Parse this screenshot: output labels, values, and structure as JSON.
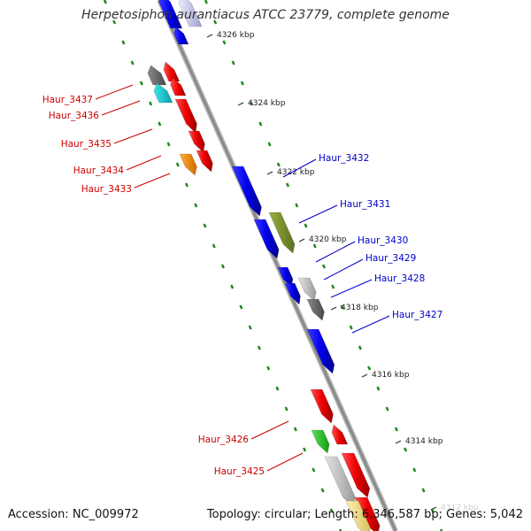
{
  "title": "Herpetosiphon aurantiacus ATCC 23779, complete genome",
  "accession": "Accession: NC_009972",
  "topology": "Topology: circular; Length: 6,346,587 bp; Genes: 5,042",
  "colors": {
    "backbone": "#8a8a8a",
    "gc_dots": "#1e8a1e",
    "label_left": "#cc0000",
    "label_right": "#0000cc",
    "kbp_text": "#222222"
  },
  "kbp_ticks": [
    {
      "label": "4326 kbp"
    },
    {
      "label": "4324 kbp"
    },
    {
      "label": "4322 kbp"
    },
    {
      "label": "4320 kbp"
    },
    {
      "label": "4318 kbp"
    },
    {
      "label": "4316 kbp"
    },
    {
      "label": "4314 kbp"
    },
    {
      "label": "4312 kbp"
    }
  ],
  "genes": [
    {
      "id": "g-top-blue-1",
      "color": "blue",
      "strand": "reverse"
    },
    {
      "id": "g-top-lav",
      "color": "lavender",
      "strand": "reverse"
    },
    {
      "id": "g-top-blue-2",
      "color": "blue",
      "strand": "reverse"
    },
    {
      "id": "g-grey-1",
      "color": "dimgray",
      "strand": "reverse"
    },
    {
      "id": "g-cyan",
      "color": "cyan",
      "strand": "reverse"
    },
    {
      "id": "g-red-1",
      "color": "red",
      "strand": "reverse"
    },
    {
      "id": "g-red-2",
      "color": "red",
      "strand": "reverse"
    },
    {
      "id": "g-red-3",
      "color": "red",
      "strand": "forward"
    },
    {
      "id": "g-red-4",
      "color": "red",
      "strand": "forward"
    },
    {
      "id": "g-red-5",
      "color": "red",
      "strand": "forward"
    },
    {
      "id": "g-orange",
      "color": "orange",
      "strand": "forward"
    },
    {
      "id": "g-blue-3432",
      "color": "blue",
      "strand": "forward"
    },
    {
      "id": "g-olive-3431",
      "color": "olive",
      "strand": "forward"
    },
    {
      "id": "g-blue-3430",
      "color": "blue",
      "strand": "forward"
    },
    {
      "id": "g-blue-3429a",
      "color": "blue",
      "strand": "forward"
    },
    {
      "id": "g-lgrey-3429",
      "color": "lightgray",
      "strand": "forward"
    },
    {
      "id": "g-blue-3428",
      "color": "blue",
      "strand": "forward"
    },
    {
      "id": "g-dgrey-3428",
      "color": "dimgray",
      "strand": "forward"
    },
    {
      "id": "g-blue-3427",
      "color": "blue",
      "strand": "forward"
    },
    {
      "id": "g-red-3426a",
      "color": "red",
      "strand": "forward"
    },
    {
      "id": "g-green-3426",
      "color": "green",
      "strand": "forward"
    },
    {
      "id": "g-red-3425a",
      "color": "red",
      "strand": "reverse"
    },
    {
      "id": "g-lgrey-3425",
      "color": "lightgray",
      "strand": "forward"
    },
    {
      "id": "g-red-3425b",
      "color": "red",
      "strand": "forward"
    },
    {
      "id": "g-red-bottom",
      "color": "red",
      "strand": "forward"
    },
    {
      "id": "g-yellow-bottom",
      "color": "khaki",
      "strand": "forward"
    }
  ],
  "labels_left": [
    {
      "text": "Haur_3437"
    },
    {
      "text": "Haur_3436"
    },
    {
      "text": "Haur_3435"
    },
    {
      "text": "Haur_3434"
    },
    {
      "text": "Haur_3433"
    },
    {
      "text": "Haur_3426"
    },
    {
      "text": "Haur_3425"
    }
  ],
  "labels_right": [
    {
      "text": "Haur_3432"
    },
    {
      "text": "Haur_3431"
    },
    {
      "text": "Haur_3430"
    },
    {
      "text": "Haur_3429"
    },
    {
      "text": "Haur_3428"
    },
    {
      "text": "Haur_3427"
    }
  ]
}
